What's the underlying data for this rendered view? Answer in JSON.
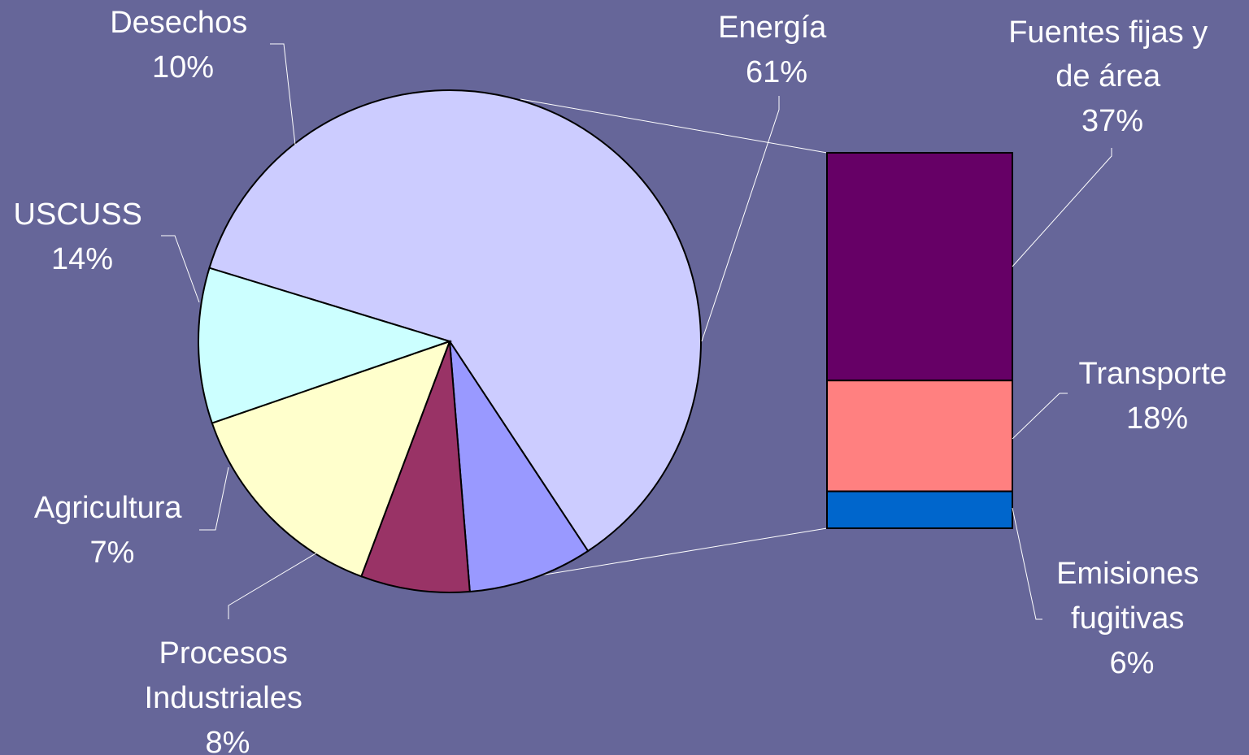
{
  "background_color": "#666699",
  "chart_data": [
    {
      "type": "pie",
      "slices": [
        {
          "name": "Energía",
          "value": 61,
          "label": "61%",
          "color": "#CCCCFF"
        },
        {
          "name": "Procesos Industriales",
          "value": 8,
          "label": "8%",
          "color": "#9999FF"
        },
        {
          "name": "Agricultura",
          "value": 7,
          "label": "7%",
          "color": "#993366"
        },
        {
          "name": "USCUSS",
          "value": 14,
          "label": "14%",
          "color": "#FFFFCC"
        },
        {
          "name": "Desechos",
          "value": 10,
          "label": "10%",
          "color": "#CCFFFF"
        }
      ]
    },
    {
      "type": "bar",
      "stacked": true,
      "breakdown_of": "Energía",
      "segments": [
        {
          "name": "Fuentes fijas y de área",
          "value": 37,
          "label": "37%",
          "color": "#660066"
        },
        {
          "name": "Transporte",
          "value": 18,
          "label": "18%",
          "color": "#FF8080"
        },
        {
          "name": "Emisiones fugitivas",
          "value": 6,
          "label": "6%",
          "color": "#0066CC"
        }
      ]
    }
  ],
  "labels": {
    "energia": [
      "Energía",
      "61%"
    ],
    "procesos": [
      "Procesos",
      "Industriales",
      "8%"
    ],
    "agricultura": [
      "Agricultura",
      "7%"
    ],
    "uscuss": [
      "USCUSS",
      "14%"
    ],
    "desechos": [
      "Desechos",
      "10%"
    ],
    "fuentes": [
      "Fuentes fijas y",
      "de área",
      "37%"
    ],
    "transporte": [
      "Transporte",
      "18%"
    ],
    "emisiones": [
      "Emisiones",
      "fugitivas",
      "6%"
    ]
  }
}
